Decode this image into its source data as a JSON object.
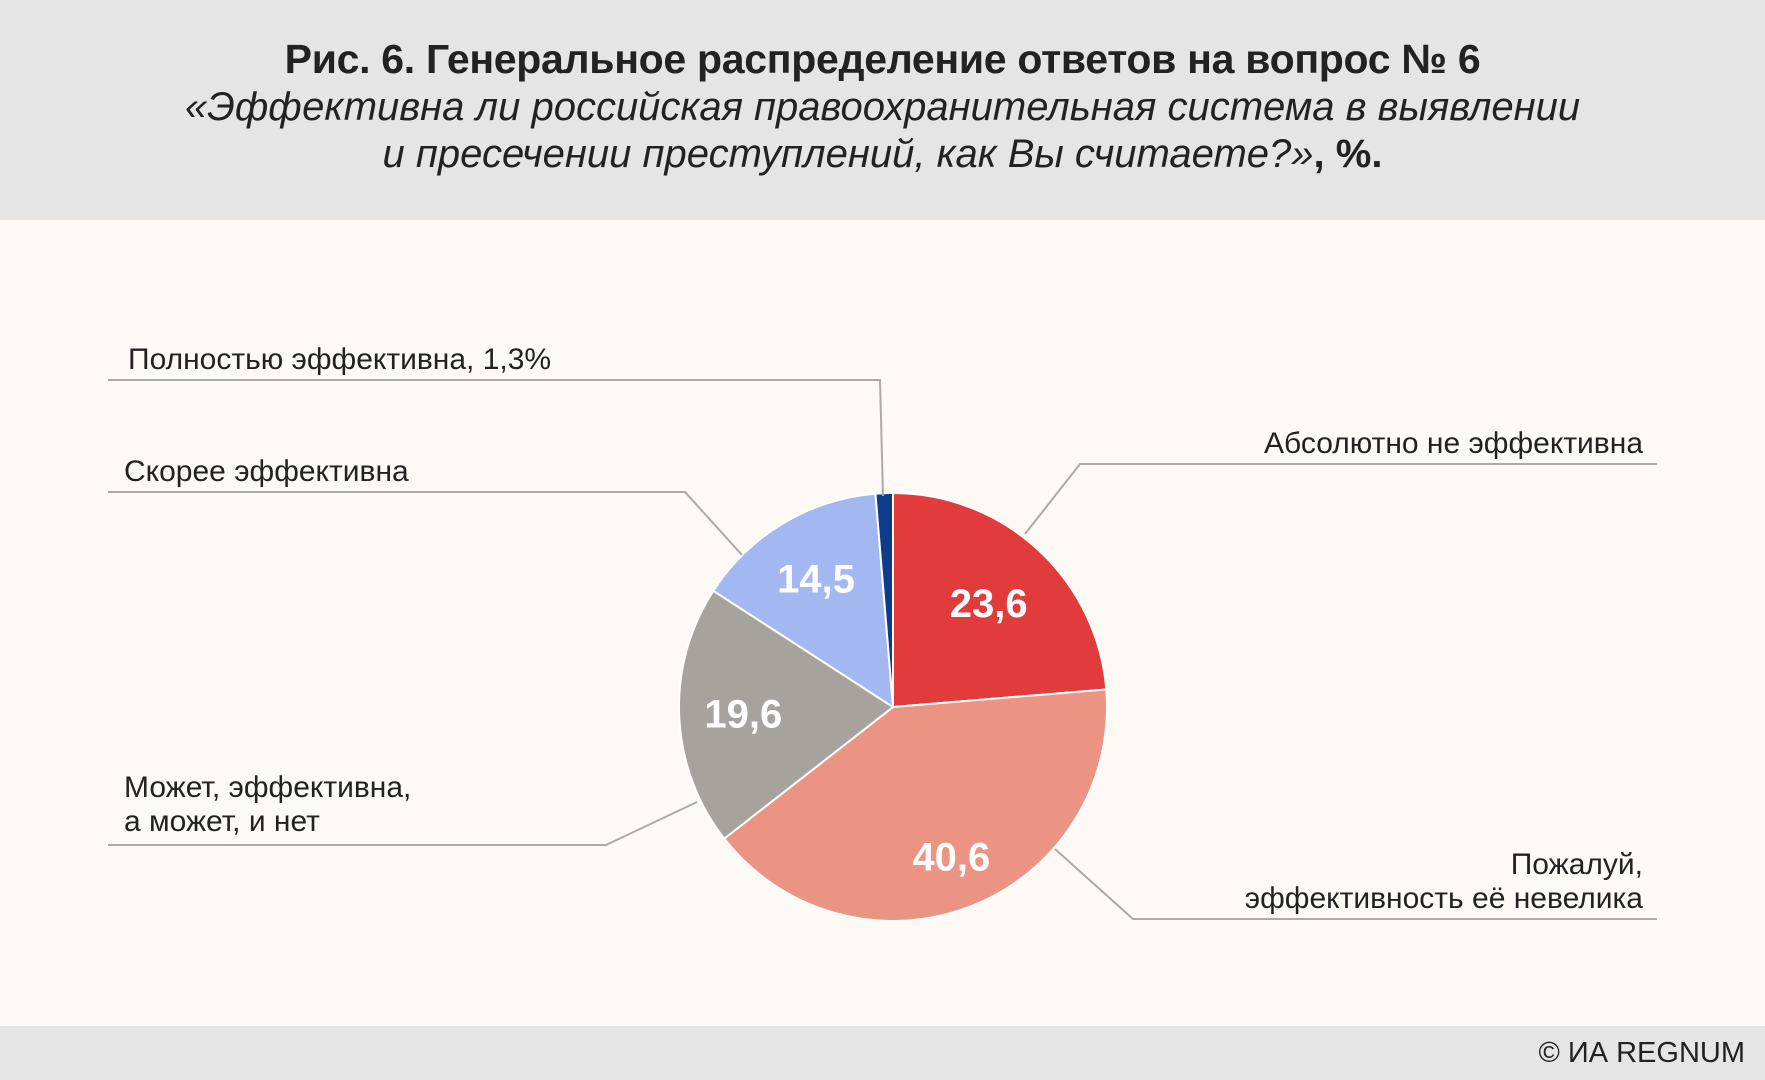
{
  "header": {
    "title": "Рис. 6. Генеральное распределение ответов на вопрос № 6",
    "subtitle_line1": "«Эффективна ли российская правоохранительная система в выявлении",
    "subtitle_line2": "и пресечении преступлений, как Вы считаете?»",
    "unit": ", %."
  },
  "footer": {
    "copyright": "© ИА REGNUM"
  },
  "chart_data": {
    "type": "pie",
    "title": "Рис. 6. Генеральное распределение ответов на вопрос № 6",
    "unit": "%",
    "slices": [
      {
        "label": "Абсолютно не эффективна",
        "value": 23.6,
        "display": "23,6",
        "color": "#e13b3b"
      },
      {
        "label_lines": [
          "Пожалуй,",
          "эффективность её невелика"
        ],
        "value": 40.6,
        "display": "40,6",
        "color": "#ec9483"
      },
      {
        "label_lines": [
          "Может, эффективна,",
          "а может, и нет"
        ],
        "value": 19.6,
        "display": "19,6",
        "color": "#a6a29c"
      },
      {
        "label": "Скорее эффективна",
        "value": 14.5,
        "display": "14,5",
        "color": "#a3b8f0"
      },
      {
        "label": "Полностью эффективна, 1,3%",
        "value": 1.3,
        "display": "",
        "color": "#0d3d8a"
      }
    ],
    "legend": "none"
  }
}
